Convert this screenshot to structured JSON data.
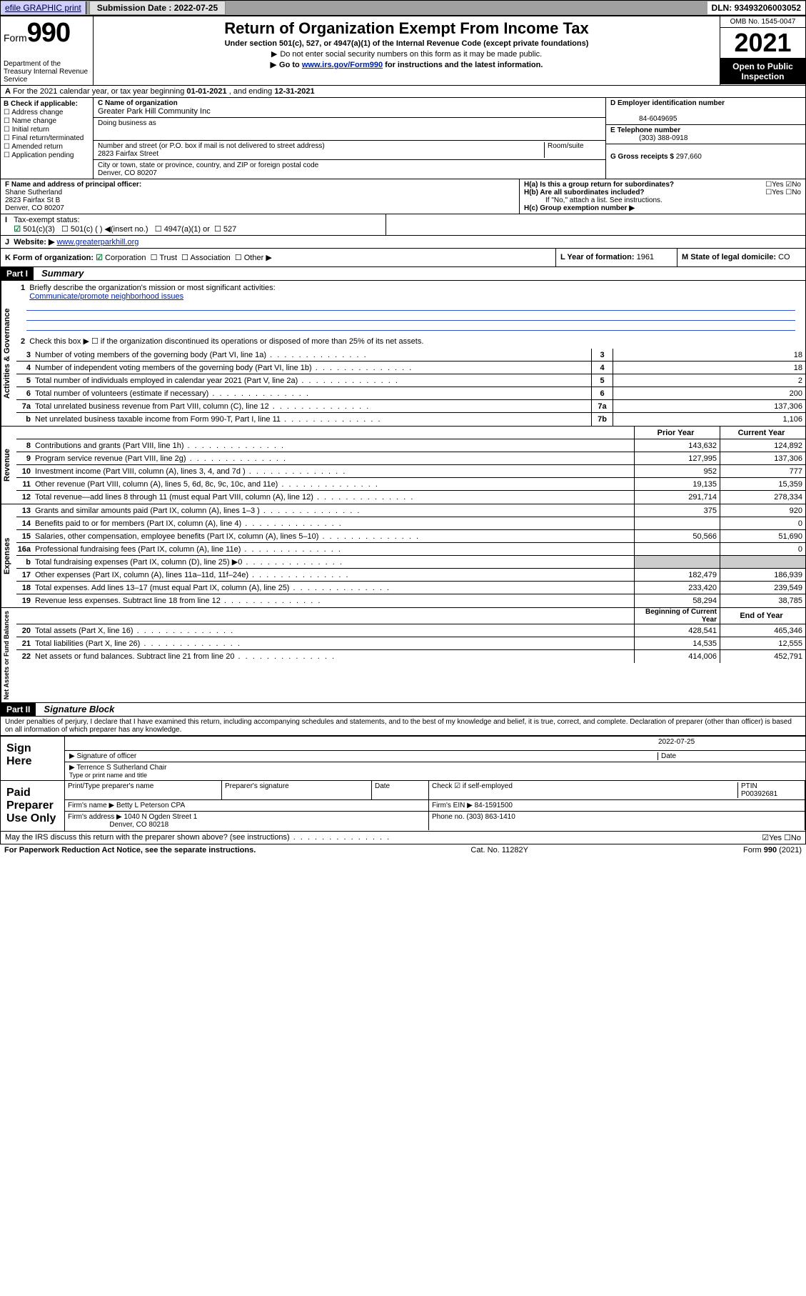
{
  "topbar": {
    "efile": "efile GRAPHIC print",
    "submission_label": "Submission Date :",
    "submission_date": "2022-07-25",
    "dln_label": "DLN:",
    "dln": "93493206003052"
  },
  "header": {
    "form_word": "Form",
    "form_num": "990",
    "dept": "Department of the Treasury Internal Revenue Service",
    "title": "Return of Organization Exempt From Income Tax",
    "sub1": "Under section 501(c), 527, or 4947(a)(1) of the Internal Revenue Code (except private foundations)",
    "sub2": "Do not enter social security numbers on this form as it may be made public.",
    "sub3_pre": "Go to ",
    "sub3_link": "www.irs.gov/Form990",
    "sub3_post": " for instructions and the latest information.",
    "omb": "OMB No. 1545-0047",
    "year": "2021",
    "open": "Open to Public Inspection"
  },
  "secA": {
    "text_pre": "For the 2021 calendar year, or tax year beginning ",
    "begin": "01-01-2021",
    "mid": " , and ending ",
    "end": "12-31-2021"
  },
  "blockB": {
    "title": "B Check if applicable:",
    "items": [
      "Address change",
      "Name change",
      "Initial return",
      "Final return/terminated",
      "Amended return",
      "Application pending"
    ]
  },
  "blockC": {
    "c_label": "C Name of organization",
    "org": "Greater Park Hill Community Inc",
    "dba_label": "Doing business as",
    "addr_label": "Number and street (or P.O. box if mail is not delivered to street address)",
    "room_label": "Room/suite",
    "addr": "2823 Fairfax Street",
    "city_label": "City or town, state or province, country, and ZIP or foreign postal code",
    "city": "Denver, CO  80207"
  },
  "blockD": {
    "d_label": "D Employer identification number",
    "ein": "84-6049695",
    "e_label": "E Telephone number",
    "phone": "(303) 388-0918",
    "g_label": "G Gross receipts $",
    "gross": "297,660"
  },
  "blockF": {
    "f_label": "F Name and address of principal officer:",
    "name": "Shane Sutherland",
    "addr1": "2823 Fairfax St B",
    "addr2": "Denver, CO  80207"
  },
  "blockH": {
    "ha": "H(a)  Is this a group return for subordinates?",
    "ha_ans": "☐Yes ☑No",
    "hb": "H(b)  Are all subordinates included?",
    "hb_ans": "☐Yes ☐No",
    "hb_note": "If \"No,\" attach a list. See instructions.",
    "hc": "H(c)  Group exemption number ▶"
  },
  "lineI": {
    "label": "Tax-exempt status:",
    "opt1": "501(c)(3)",
    "opt2": "501(c) (  ) ◀(insert no.)",
    "opt3": "4947(a)(1) or",
    "opt4": "527"
  },
  "lineJ": {
    "label": "Website: ▶",
    "val": "www.greaterparkhill.org"
  },
  "lineK": {
    "label": "K Form of organization:",
    "corp": "Corporation",
    "trust": "Trust",
    "assoc": "Association",
    "other": "Other ▶"
  },
  "lineL": {
    "label": "L Year of formation:",
    "val": "1961"
  },
  "lineM": {
    "label": "M State of legal domicile:",
    "val": "CO"
  },
  "part1": {
    "hdr": "Part I",
    "title": "Summary",
    "q1": "Briefly describe the organization's mission or most significant activities:",
    "mission": "Communicate/promote neighborhood issues",
    "q2": "Check this box ▶ ☐  if the organization discontinued its operations or disposed of more than 25% of its net assets.",
    "rows_gov": [
      {
        "n": "3",
        "label": "Number of voting members of the governing body (Part VI, line 1a)",
        "box": "3",
        "val": "18"
      },
      {
        "n": "4",
        "label": "Number of independent voting members of the governing body (Part VI, line 1b)",
        "box": "4",
        "val": "18"
      },
      {
        "n": "5",
        "label": "Total number of individuals employed in calendar year 2021 (Part V, line 2a)",
        "box": "5",
        "val": "2"
      },
      {
        "n": "6",
        "label": "Total number of volunteers (estimate if necessary)",
        "box": "6",
        "val": "200"
      },
      {
        "n": "7a",
        "label": "Total unrelated business revenue from Part VIII, column (C), line 12",
        "box": "7a",
        "val": "137,306"
      },
      {
        "n": "b",
        "label": "Net unrelated business taxable income from Form 990-T, Part I, line 11",
        "box": "7b",
        "val": "1,106"
      }
    ],
    "col_prior": "Prior Year",
    "col_current": "Current Year",
    "rows_rev": [
      {
        "n": "8",
        "label": "Contributions and grants (Part VIII, line 1h)",
        "v1": "143,632",
        "v2": "124,892"
      },
      {
        "n": "9",
        "label": "Program service revenue (Part VIII, line 2g)",
        "v1": "127,995",
        "v2": "137,306"
      },
      {
        "n": "10",
        "label": "Investment income (Part VIII, column (A), lines 3, 4, and 7d )",
        "v1": "952",
        "v2": "777"
      },
      {
        "n": "11",
        "label": "Other revenue (Part VIII, column (A), lines 5, 6d, 8c, 9c, 10c, and 11e)",
        "v1": "19,135",
        "v2": "15,359"
      },
      {
        "n": "12",
        "label": "Total revenue—add lines 8 through 11 (must equal Part VIII, column (A), line 12)",
        "v1": "291,714",
        "v2": "278,334"
      }
    ],
    "rows_exp": [
      {
        "n": "13",
        "label": "Grants and similar amounts paid (Part IX, column (A), lines 1–3 )",
        "v1": "375",
        "v2": "920"
      },
      {
        "n": "14",
        "label": "Benefits paid to or for members (Part IX, column (A), line 4)",
        "v1": "",
        "v2": "0"
      },
      {
        "n": "15",
        "label": "Salaries, other compensation, employee benefits (Part IX, column (A), lines 5–10)",
        "v1": "50,566",
        "v2": "51,690"
      },
      {
        "n": "16a",
        "label": "Professional fundraising fees (Part IX, column (A), line 11e)",
        "v1": "",
        "v2": "0"
      },
      {
        "n": "b",
        "label": "Total fundraising expenses (Part IX, column (D), line 25) ▶0",
        "v1": "shaded",
        "v2": "shaded"
      },
      {
        "n": "17",
        "label": "Other expenses (Part IX, column (A), lines 11a–11d, 11f–24e)",
        "v1": "182,479",
        "v2": "186,939"
      },
      {
        "n": "18",
        "label": "Total expenses. Add lines 13–17 (must equal Part IX, column (A), line 25)",
        "v1": "233,420",
        "v2": "239,549"
      },
      {
        "n": "19",
        "label": "Revenue less expenses. Subtract line 18 from line 12",
        "v1": "58,294",
        "v2": "38,785"
      }
    ],
    "col_begin": "Beginning of Current Year",
    "col_end": "End of Year",
    "rows_net": [
      {
        "n": "20",
        "label": "Total assets (Part X, line 16)",
        "v1": "428,541",
        "v2": "465,346"
      },
      {
        "n": "21",
        "label": "Total liabilities (Part X, line 26)",
        "v1": "14,535",
        "v2": "12,555"
      },
      {
        "n": "22",
        "label": "Net assets or fund balances. Subtract line 21 from line 20",
        "v1": "414,006",
        "v2": "452,791"
      }
    ]
  },
  "part2": {
    "hdr": "Part II",
    "title": "Signature Block",
    "decl": "Under penalties of perjury, I declare that I have examined this return, including accompanying schedules and statements, and to the best of my knowledge and belief, it is true, correct, and complete. Declaration of preparer (other than officer) is based on all information of which preparer has any knowledge.",
    "sign_here": "Sign Here",
    "sig_officer": "Signature of officer",
    "date_label": "Date",
    "sig_date": "2022-07-25",
    "name_title_label": "Type or print name and title",
    "name_title": "Terrence S Sutherland  Chair",
    "paid": "Paid Preparer Use Only",
    "prep_name_label": "Print/Type preparer's name",
    "prep_sig_label": "Preparer's signature",
    "check_self": "Check ☑ if self-employed",
    "ptin_label": "PTIN",
    "ptin": "P00392681",
    "firm_name_label": "Firm's name    ▶",
    "firm_name": "Betty L Peterson CPA",
    "firm_ein_label": "Firm's EIN ▶",
    "firm_ein": "84-1591500",
    "firm_addr_label": "Firm's address ▶",
    "firm_addr1": "1040 N Ogden Street 1",
    "firm_addr2": "Denver, CO  80218",
    "phone_label": "Phone no.",
    "phone": "(303) 863-1410",
    "may_irs": "May the IRS discuss this return with the preparer shown above? (see instructions)",
    "may_ans": "☑Yes  ☐No"
  },
  "footer": {
    "left": "For Paperwork Reduction Act Notice, see the separate instructions.",
    "mid": "Cat. No. 11282Y",
    "right": "Form 990 (2021)"
  },
  "sidebars": {
    "gov": "Activities & Governance",
    "rev": "Revenue",
    "exp": "Expenses",
    "net": "Net Assets or Fund Balances"
  },
  "colors": {
    "topbar_bg": "#a0a0a0",
    "link": "#0020a0",
    "check_green": "#0a7a3a",
    "mission_line": "#3355cc"
  }
}
